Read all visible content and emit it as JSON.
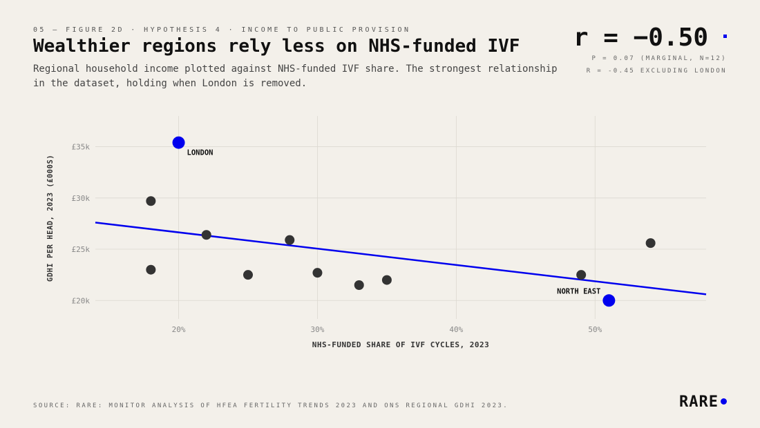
{
  "header": {
    "eyebrow": "05 — FIGURE 2D · HYPOTHESIS 4 · INCOME TO PUBLIC PROVISION",
    "title": "Wealthier regions rely less on NHS-funded IVF",
    "subtitle": "Regional household income plotted against NHS-funded IVF share. The strongest relationship in the dataset, holding when London is removed."
  },
  "stat": {
    "value": "r = −0.50",
    "line1": "P = 0.07 (MARGINAL, N=12)",
    "line2": "R = -0.45 EXCLUDING LONDON"
  },
  "footer": {
    "source": "SOURCE: RARE: MONITOR ANALYSIS OF HFEA FERTILITY TRENDS 2023 AND ONS REGIONAL GDHI 2023.",
    "brand": "RARE"
  },
  "colors": {
    "accent": "#0000ee",
    "point": "#333333",
    "grid": "#dcd8d0",
    "background": "#f3f0ea"
  },
  "chart_data": {
    "type": "scatter",
    "xlabel": "NHS-FUNDED SHARE OF IVF CYCLES, 2023",
    "ylabel": "GDHI PER HEAD, 2023 (£000S)",
    "xlim": [
      14,
      58
    ],
    "ylim": [
      18.2,
      38
    ],
    "x_ticks": [
      20,
      30,
      40,
      50
    ],
    "x_tick_labels": [
      "20%",
      "30%",
      "40%",
      "50%"
    ],
    "y_ticks": [
      20,
      25,
      30,
      35
    ],
    "y_tick_labels": [
      "£20k",
      "£25k",
      "£30k",
      "£35k"
    ],
    "grid": true,
    "points": [
      {
        "x": 20,
        "y": 35.4,
        "label": "LONDON",
        "highlight": true
      },
      {
        "x": 18,
        "y": 29.7
      },
      {
        "x": 18,
        "y": 23.0
      },
      {
        "x": 22,
        "y": 26.4
      },
      {
        "x": 25,
        "y": 22.5
      },
      {
        "x": 28,
        "y": 25.9
      },
      {
        "x": 30,
        "y": 22.7
      },
      {
        "x": 33,
        "y": 21.5
      },
      {
        "x": 35,
        "y": 22.0
      },
      {
        "x": 49,
        "y": 22.5
      },
      {
        "x": 54,
        "y": 25.6
      },
      {
        "x": 51,
        "y": 20.0,
        "label": "NORTH EAST",
        "highlight": true
      }
    ],
    "trendline": {
      "x": [
        14,
        58
      ],
      "y": [
        27.6,
        20.6
      ]
    }
  }
}
